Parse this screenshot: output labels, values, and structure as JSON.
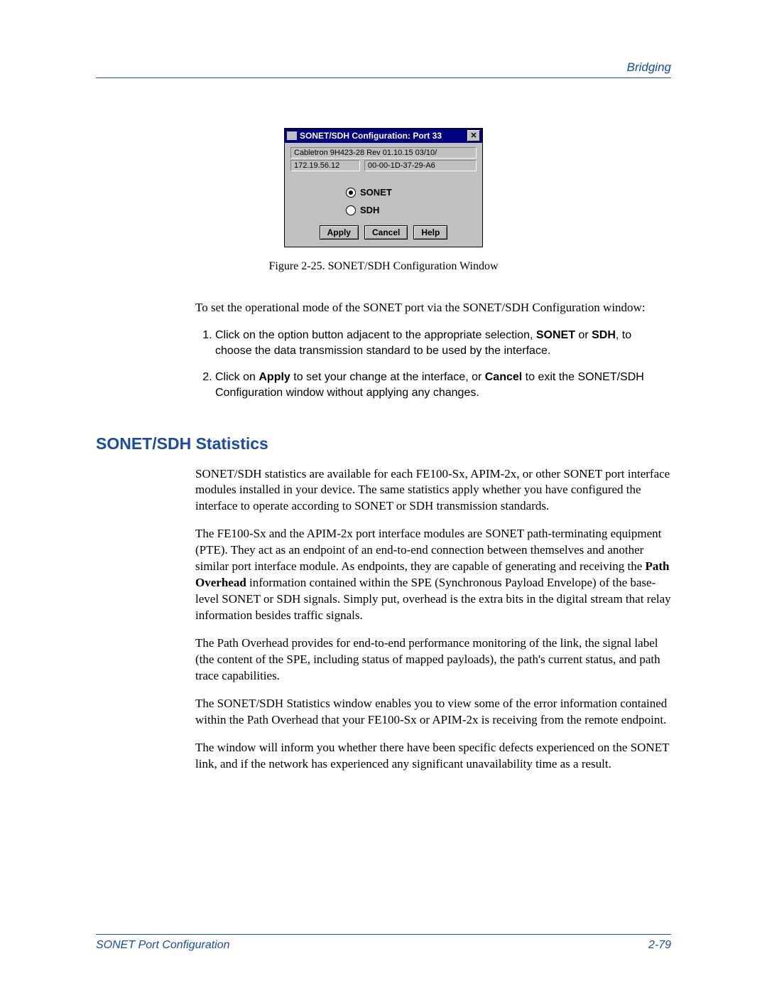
{
  "header": {
    "right_text": "Bridging"
  },
  "dialog": {
    "title": "SONET/SDH Configuration: Port 33",
    "device_line": "Cabletron 9H423-28 Rev 01.10.15  03/10/",
    "ip": "172.19.56.12",
    "mac": "00-00-1D-37-29-A6",
    "radio_sonet": "SONET",
    "radio_sdh": "SDH",
    "btn_apply": "Apply",
    "btn_cancel": "Cancel",
    "btn_help": "Help",
    "close_glyph": "✕"
  },
  "figure_caption": "Figure 2-25. SONET/SDH Configuration Window",
  "intro_para": "To set the operational mode of the SONET port via the SONET/SDH Configuration window:",
  "step1_a": "Click on the option button adjacent to the appropriate selection, ",
  "step1_b1": "SONET",
  "step1_mid": " or ",
  "step1_b2": "SDH",
  "step1_c": ", to choose the data transmission standard to be used by the interface.",
  "step2_a": "Click on ",
  "step2_b1": "Apply",
  "step2_mid": " to set your change at the interface, or ",
  "step2_b2": "Cancel",
  "step2_c": " to exit the SONET/SDH Configuration window without applying any changes.",
  "section_heading": "SONET/SDH Statistics",
  "para1": "SONET/SDH statistics are available for each FE100-Sx, APIM-2x, or other SONET port interface modules installed in your device. The same statistics apply whether you have configured the interface to operate according to SONET or SDH transmission standards.",
  "para2_a": "The FE100-Sx and the APIM-2x port interface modules are SONET path-terminating equipment (PTE). They act as an endpoint of an end-to-end connection between themselves and another similar port interface module. As endpoints, they are capable of generating and receiving the ",
  "para2_bold": "Path Overhead",
  "para2_b": " information contained within the SPE (Synchronous Payload Envelope) of the base-level SONET or SDH signals. Simply put, overhead is the extra bits in the digital stream that relay information besides traffic signals.",
  "para3": "The Path Overhead provides for end-to-end performance monitoring of the link, the signal label (the content of the SPE, including status of mapped payloads), the path's current status, and path trace capabilities.",
  "para4": "The SONET/SDH Statistics window enables you to view some of the error information contained within the Path Overhead that your FE100-Sx or APIM-2x is receiving from the remote endpoint.",
  "para5": "The window will inform you whether there have been specific defects experienced on the SONET link, and if the network has experienced any significant unavailability time as a result.",
  "footer": {
    "left": "SONET Port Configuration",
    "right": "2-79"
  },
  "colors": {
    "accent": "#1a4ba8",
    "dialog_bg": "#c0c0c0",
    "titlebar_bg": "#000080"
  }
}
